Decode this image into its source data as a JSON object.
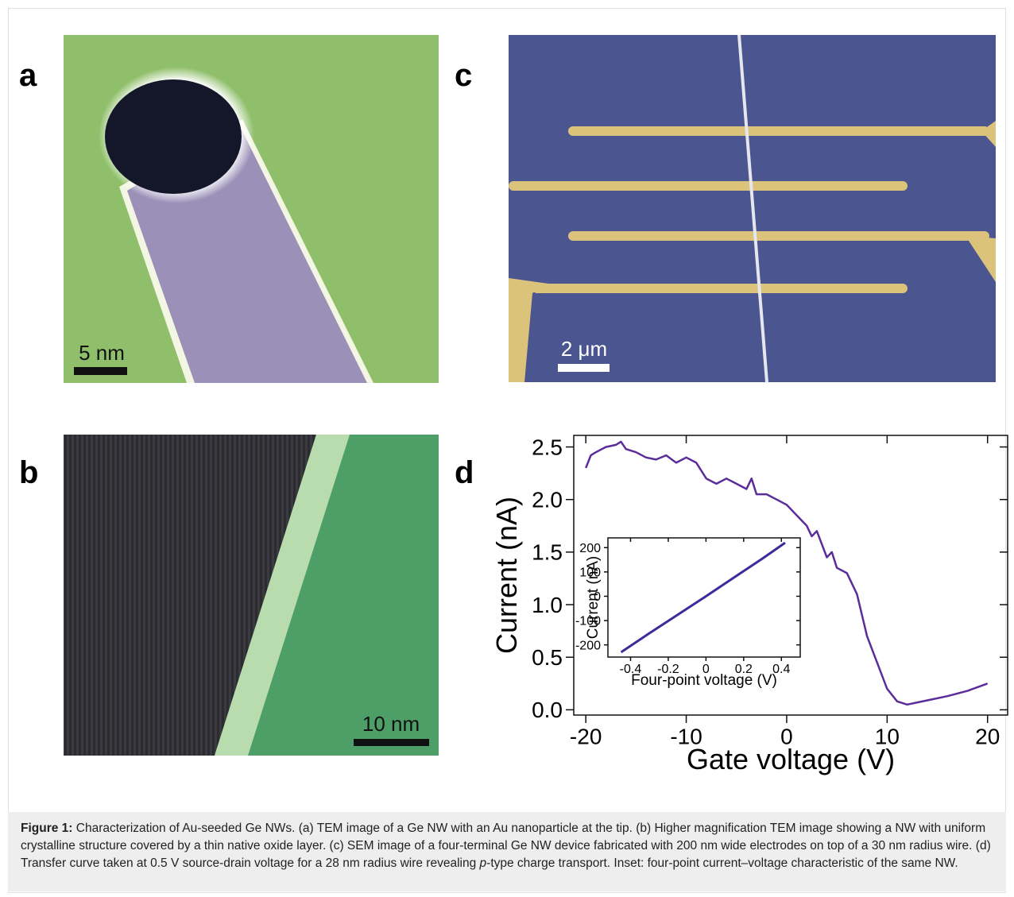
{
  "panels": {
    "a": {
      "label": "a",
      "scale_bar": "5 nm"
    },
    "b": {
      "label": "b",
      "scale_bar": "10 nm"
    },
    "c": {
      "label": "c",
      "scale_bar": "2 μm"
    },
    "d": {
      "label": "d"
    }
  },
  "chart_data": [
    {
      "type": "line",
      "x_label": "Gate voltage (V)",
      "y_label": "Current (nA)",
      "color": "#5b2d9a",
      "x": [
        -20,
        -19.5,
        -19,
        -18,
        -17,
        -16.5,
        -16,
        -15,
        -14,
        -13,
        -12,
        -11,
        -10,
        -9,
        -8,
        -7,
        -6,
        -5,
        -4,
        -3.5,
        -3,
        -2,
        -1,
        0,
        1,
        2,
        2.5,
        3,
        4,
        4.5,
        5,
        6,
        7,
        8,
        9,
        10,
        11,
        12,
        13,
        14,
        16,
        18,
        20
      ],
      "values": [
        2.3,
        2.42,
        2.45,
        2.5,
        2.52,
        2.55,
        2.48,
        2.45,
        2.4,
        2.38,
        2.42,
        2.35,
        2.4,
        2.35,
        2.2,
        2.15,
        2.2,
        2.15,
        2.1,
        2.2,
        2.05,
        2.05,
        2.0,
        1.95,
        1.85,
        1.75,
        1.65,
        1.7,
        1.45,
        1.5,
        1.35,
        1.3,
        1.1,
        0.7,
        0.45,
        0.2,
        0.08,
        0.05,
        0.07,
        0.09,
        0.13,
        0.18,
        0.25
      ],
      "xlim": [
        -21.2,
        22
      ],
      "ylim": [
        -0.05,
        2.61
      ],
      "xticks": [
        -20,
        -10,
        0,
        10,
        20
      ],
      "yticks": [
        {
          "value": 0,
          "label": "0.0"
        },
        0.5,
        {
          "value": 1,
          "label": "1.0"
        },
        1.5,
        {
          "value": 2,
          "label": "2.0"
        },
        2.5
      ]
    },
    {
      "type": "line",
      "x_label": "Four-point voltage (V)",
      "y_label": "Current (nA)",
      "color": "#3a2c9a",
      "x": [
        -0.45,
        -0.3,
        -0.15,
        0,
        0.15,
        0.3,
        0.42
      ],
      "values": [
        -230,
        -152,
        -76,
        0,
        78,
        155,
        220
      ],
      "xlim": [
        -0.52,
        0.5
      ],
      "ylim": [
        -250,
        240
      ],
      "xticks": [
        -0.4,
        -0.2,
        0,
        0.2,
        0.4
      ],
      "yticks": [
        -200,
        -100,
        0,
        100,
        200
      ]
    }
  ],
  "caption": {
    "label": "Figure 1:",
    "text": "Characterization of Au-seeded Ge NWs. (a) TEM image of a Ge NW with an Au nanoparticle at the tip. (b) Higher magnification TEM image showing a NW with uniform crystalline structure covered by a thin native oxide layer. (c) SEM image of a four-terminal Ge NW device fabricated with 200 nm wide electrodes on top of a 30 nm radius wire. (d) Transfer curve taken at 0.5 V source-drain voltage for a 28 nm radius wire revealing",
    "italic": "p",
    "text_end": "-type charge transport. Inset: four-point current–voltage characteristic of the same NW."
  }
}
